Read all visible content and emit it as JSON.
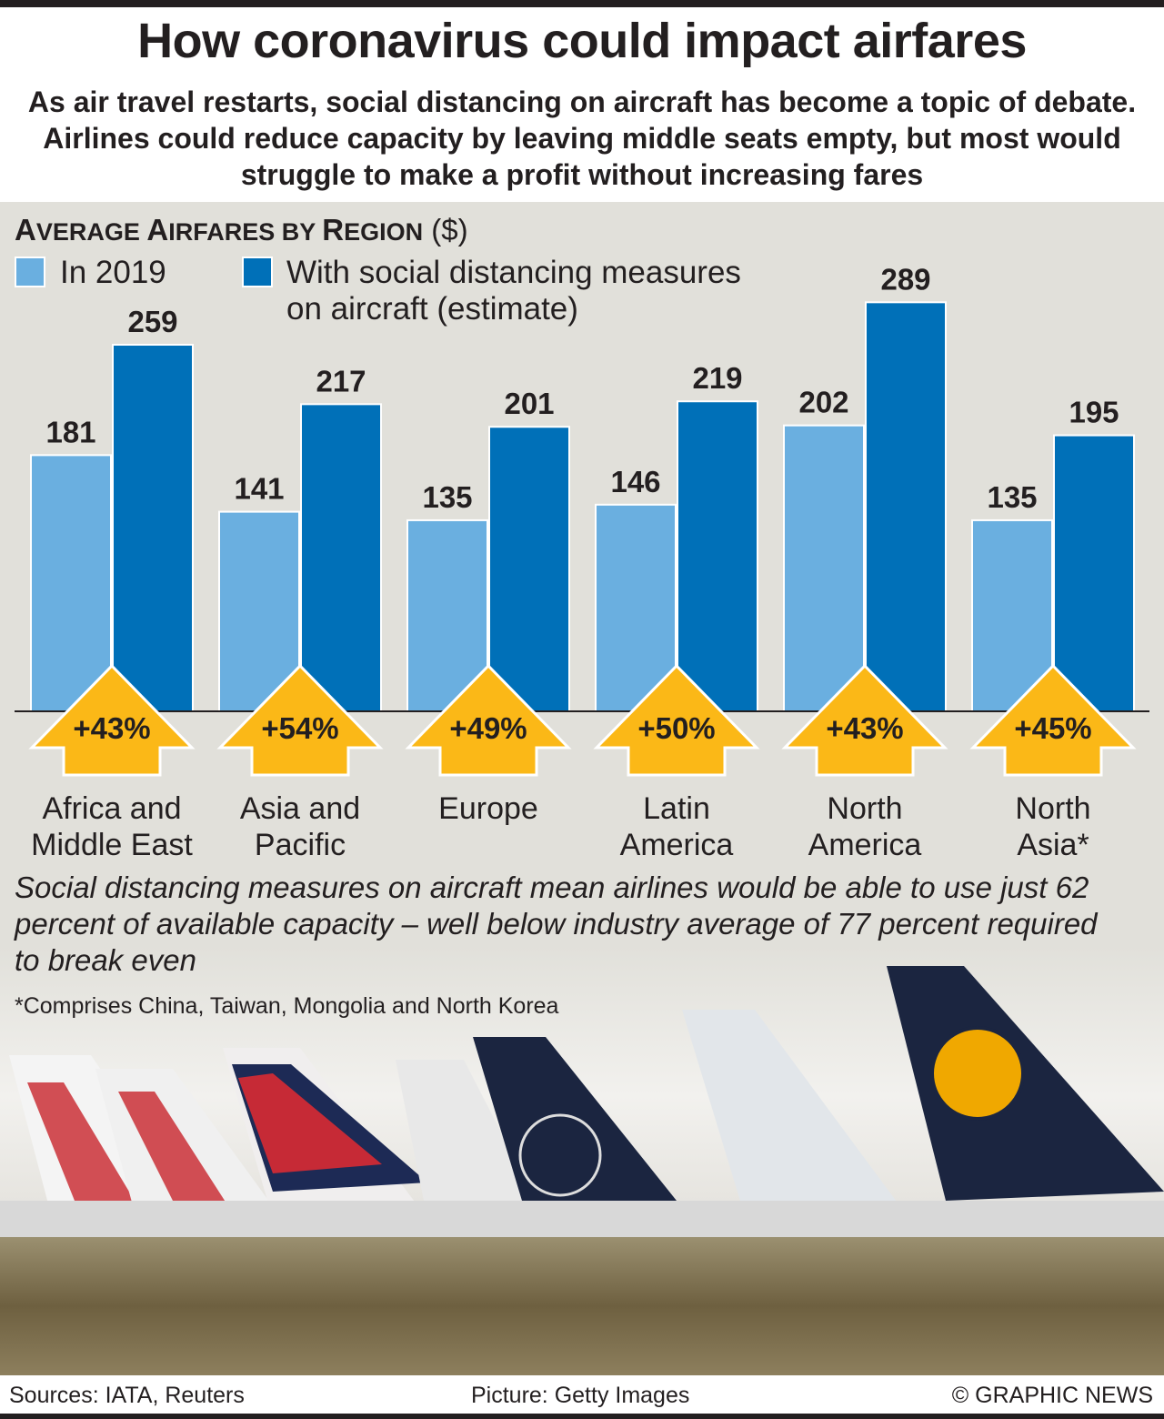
{
  "header": {
    "title": "How coronavirus could impact airfares",
    "subtitle": "As air travel restarts, social distancing on aircraft has become a topic of debate. Airlines could reduce capacity by leaving middle seats empty, but most would struggle to make a profit without increasing fares"
  },
  "chart_data": {
    "type": "bar",
    "title_parts": {
      "a1": "A",
      "a2": "VERAGE ",
      "b1": "A",
      "b2": "IRFARES BY ",
      "c1": "R",
      "c2": "EGION",
      "unit": "($)"
    },
    "categories": [
      "Africa and Middle East",
      "Asia and Pacific",
      "Europe",
      "Latin America",
      "North America",
      "North Asia*"
    ],
    "category_lines": [
      [
        "Africa and",
        "Middle East"
      ],
      [
        "Asia and",
        "Pacific"
      ],
      [
        "Europe",
        ""
      ],
      [
        "Latin",
        "America"
      ],
      [
        "North",
        "America"
      ],
      [
        "North",
        "Asia*"
      ]
    ],
    "series": [
      {
        "name": "In 2019",
        "values": [
          181,
          141,
          135,
          146,
          202,
          135
        ],
        "color": "#6aafe0"
      },
      {
        "name": "With social distancing measures on aircraft (estimate)",
        "name_lines": [
          "With social distancing measures",
          "on aircraft (estimate)"
        ],
        "values": [
          259,
          217,
          201,
          219,
          289,
          195
        ],
        "color": "#0070b8"
      }
    ],
    "increase_labels": [
      "+43%",
      "+54%",
      "+49%",
      "+50%",
      "+43%",
      "+45%"
    ],
    "arrow_color": "#fbb817",
    "ylim": [
      0,
      300
    ],
    "grid": false,
    "legend": "top-left"
  },
  "note": "Social distancing measures on aircraft mean airlines would be able to use just 62 percent of available capacity – well below industry average of 77 percent required to break even",
  "footnote": "*Comprises China, Taiwan, Mongolia and North Korea",
  "footer": {
    "sources": "Sources: IATA, Reuters",
    "picture": "Picture: Getty Images",
    "credit": "© GRAPHIC NEWS"
  }
}
